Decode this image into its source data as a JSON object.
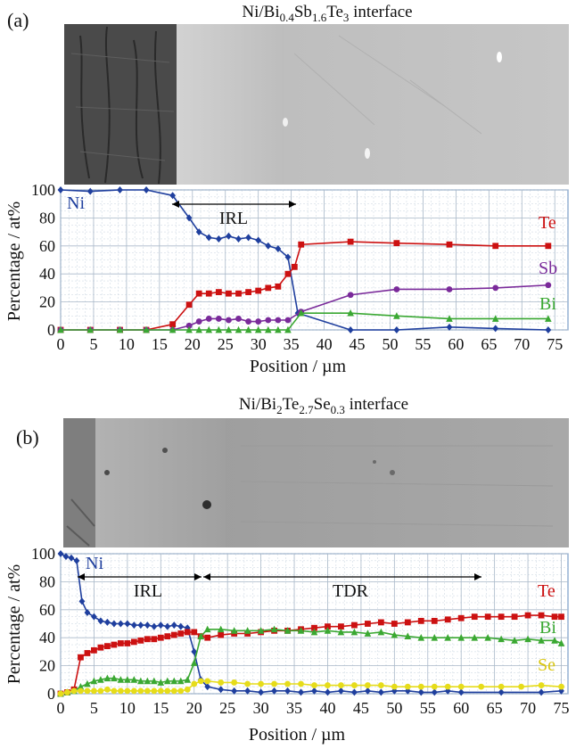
{
  "colors": {
    "Ni": "#1f3f9e",
    "Te": "#cc1111",
    "Sb": "#7a2a9a",
    "Bi": "#3aa832",
    "Se": "#e6dc1a",
    "grid": "#c7d3df",
    "frame": "#7a9cc7"
  },
  "chart_data": [
    {
      "type": "line",
      "panel_label": "(a)",
      "title": "Ni/Bi0.4Sb1.6Te3 interface",
      "xlabel": "Position / µm",
      "ylabel": "Percentage / at%",
      "xlim": [
        0,
        77
      ],
      "ylim": [
        0,
        100
      ],
      "xticks": [
        "0",
        "5",
        "10",
        "15",
        "20",
        "25",
        "30",
        "35",
        "40",
        "45",
        "50",
        "55",
        "60",
        "65",
        "70",
        "75"
      ],
      "yticks": [
        "0",
        "20",
        "40",
        "60",
        "80",
        "100"
      ],
      "grid": true,
      "annotation": "IRL",
      "series": [
        {
          "name": "Ni",
          "marker": "diamond",
          "x": [
            0,
            4.5,
            9,
            13,
            17,
            19.5,
            21,
            22.5,
            24,
            25.5,
            27,
            28.5,
            30,
            31.5,
            33,
            34.5,
            36,
            44,
            51,
            59,
            66,
            74
          ],
          "y": [
            100,
            99,
            100,
            100,
            96,
            80,
            70,
            66,
            65,
            67,
            65,
            66,
            64,
            60,
            58,
            52,
            12,
            0,
            0,
            2,
            1,
            0
          ]
        },
        {
          "name": "Te",
          "marker": "square",
          "x": [
            0,
            4.5,
            9,
            13,
            17,
            19.5,
            21,
            22.5,
            24,
            25.5,
            27,
            28.5,
            30,
            31.5,
            33,
            34.5,
            35.5,
            36.5,
            44,
            51,
            59,
            66,
            74
          ],
          "y": [
            0,
            0,
            0,
            0,
            4,
            18,
            26,
            26,
            27,
            26,
            26,
            27,
            28,
            30,
            31,
            40,
            45,
            61,
            63,
            62,
            61,
            60,
            60
          ]
        },
        {
          "name": "Sb",
          "marker": "circle",
          "x": [
            0,
            4.5,
            9,
            13,
            17,
            19.5,
            21,
            22.5,
            24,
            25.5,
            27,
            28.5,
            30,
            31.5,
            33,
            34.5,
            36.5,
            44,
            51,
            59,
            66,
            74
          ],
          "y": [
            0,
            0,
            0,
            0,
            0,
            3,
            6,
            8,
            8,
            7,
            8,
            6,
            6,
            7,
            7,
            7,
            13,
            25,
            29,
            29,
            30,
            32
          ]
        },
        {
          "name": "Bi",
          "marker": "triangle",
          "x": [
            0,
            4.5,
            9,
            13,
            17,
            19.5,
            21,
            22.5,
            24,
            25.5,
            27,
            28.5,
            30,
            31.5,
            33,
            34.5,
            36.5,
            44,
            51,
            59,
            66,
            74
          ],
          "y": [
            0,
            0,
            0,
            0,
            0,
            0,
            0,
            0,
            0,
            0,
            0,
            0,
            0,
            0,
            0,
            0,
            12,
            12,
            10,
            8,
            8,
            8
          ]
        }
      ]
    },
    {
      "type": "line",
      "panel_label": "(b)",
      "title": "Ni/Bi2Te2.7Se0.3 interface",
      "xlabel": "Position / µm",
      "ylabel": "Percentage / at%",
      "xlim": [
        0,
        76
      ],
      "ylim": [
        0,
        100
      ],
      "xticks": [
        "0",
        "5",
        "10",
        "15",
        "20",
        "25",
        "30",
        "35",
        "40",
        "45",
        "50",
        "55",
        "60",
        "65",
        "70",
        "75"
      ],
      "yticks": [
        "0",
        "20",
        "40",
        "60",
        "80",
        "100"
      ],
      "grid": true,
      "annotations": [
        "IRL",
        "TDR"
      ],
      "series": [
        {
          "name": "Ni",
          "marker": "diamond",
          "x": [
            0,
            0.8,
            1.6,
            2.4,
            3.2,
            4,
            5,
            6,
            7,
            8,
            9,
            10,
            11,
            12,
            13,
            14,
            15,
            16,
            17,
            18,
            19,
            20,
            21,
            22,
            24,
            26,
            28,
            30,
            32,
            34,
            36,
            38,
            40,
            42,
            44,
            46,
            48,
            50,
            52,
            54,
            56,
            58,
            60,
            66,
            72,
            75
          ],
          "y": [
            100,
            98,
            97,
            95,
            66,
            58,
            55,
            52,
            51,
            50,
            50,
            50,
            49,
            49,
            49,
            48,
            49,
            48,
            49,
            48,
            47,
            30,
            10,
            5,
            3,
            2,
            2,
            1,
            2,
            2,
            1,
            2,
            1,
            2,
            1,
            2,
            1,
            2,
            2,
            1,
            1,
            2,
            1,
            1,
            1,
            2
          ]
        },
        {
          "name": "Te",
          "marker": "square",
          "x": [
            0,
            1,
            2,
            3,
            4,
            5,
            6,
            7,
            8,
            9,
            10,
            11,
            12,
            13,
            14,
            15,
            16,
            17,
            18,
            19,
            20,
            21,
            22,
            24,
            26,
            28,
            30,
            32,
            34,
            36,
            38,
            40,
            42,
            44,
            46,
            48,
            50,
            52,
            54,
            56,
            58,
            60,
            62,
            64,
            66,
            68,
            70,
            72,
            74,
            75
          ],
          "y": [
            0,
            1,
            3,
            26,
            29,
            31,
            33,
            34,
            35,
            36,
            36,
            37,
            38,
            39,
            39,
            40,
            41,
            42,
            43,
            44,
            44,
            41,
            40,
            42,
            43,
            43,
            44,
            45,
            45,
            46,
            47,
            48,
            48,
            49,
            50,
            51,
            50,
            51,
            52,
            52,
            53,
            54,
            55,
            55,
            55,
            55,
            56,
            56,
            55,
            55
          ]
        },
        {
          "name": "Bi",
          "marker": "triangle",
          "x": [
            0,
            1,
            2,
            3,
            4,
            5,
            6,
            7,
            8,
            9,
            10,
            11,
            12,
            13,
            14,
            15,
            16,
            17,
            18,
            19,
            20,
            21,
            22,
            24,
            26,
            28,
            30,
            32,
            34,
            36,
            38,
            40,
            42,
            44,
            46,
            48,
            50,
            52,
            54,
            56,
            58,
            60,
            62,
            64,
            66,
            68,
            70,
            72,
            74,
            75
          ],
          "y": [
            0,
            1,
            2,
            5,
            7,
            9,
            10,
            11,
            11,
            10,
            10,
            10,
            9,
            9,
            9,
            8,
            9,
            9,
            9,
            10,
            22,
            41,
            46,
            46,
            45,
            45,
            45,
            46,
            45,
            45,
            44,
            45,
            44,
            44,
            43,
            44,
            42,
            41,
            40,
            40,
            40,
            40,
            40,
            40,
            39,
            38,
            39,
            38,
            38,
            36
          ]
        },
        {
          "name": "Se",
          "marker": "circle",
          "x": [
            0,
            1,
            2,
            3,
            4,
            5,
            6,
            7,
            8,
            9,
            10,
            11,
            12,
            13,
            14,
            15,
            16,
            17,
            18,
            19,
            20,
            21,
            22,
            24,
            26,
            28,
            30,
            32,
            34,
            36,
            38,
            40,
            42,
            44,
            46,
            48,
            50,
            52,
            54,
            56,
            58,
            60,
            63,
            66,
            69,
            72,
            75
          ],
          "y": [
            0,
            1,
            2,
            2,
            2,
            2,
            2,
            3,
            2,
            2,
            2,
            2,
            2,
            2,
            2,
            2,
            2,
            2,
            2,
            3,
            7,
            9,
            9,
            8,
            8,
            7,
            7,
            7,
            7,
            7,
            6,
            6,
            6,
            6,
            6,
            6,
            5,
            5,
            5,
            5,
            5,
            5,
            5,
            5,
            5,
            6,
            5
          ]
        }
      ]
    }
  ]
}
